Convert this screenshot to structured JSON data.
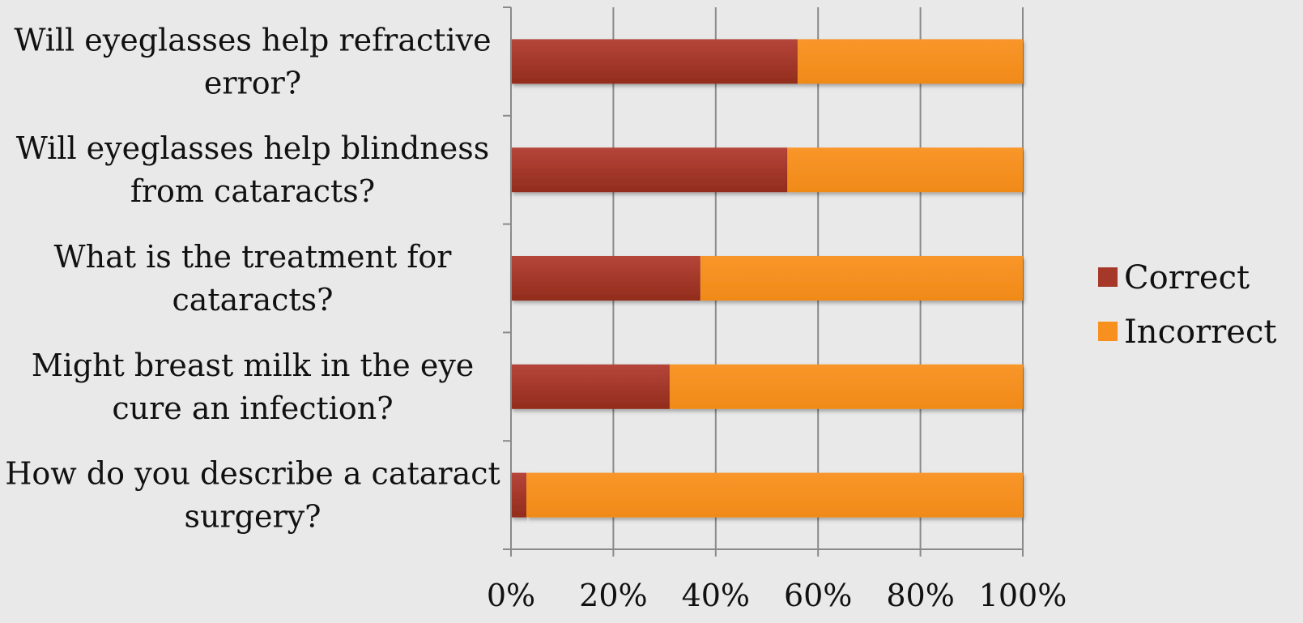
{
  "chart_data": {
    "type": "bar",
    "orientation": "horizontal",
    "stacked": "percent",
    "categories": [
      [
        "Will eyeglasses help refractive",
        "error?"
      ],
      [
        "Will eyeglasses help blindness",
        "from cataracts?"
      ],
      [
        "What is the treatment for",
        "cataracts?"
      ],
      [
        "Might breast milk in the eye",
        "cure an infection?"
      ],
      [
        "How do you describe a cataract",
        "surgery?"
      ]
    ],
    "series": [
      {
        "name": "Correct",
        "values": [
          56,
          54,
          37,
          31,
          3
        ]
      },
      {
        "name": "Incorrect",
        "values": [
          44,
          46,
          63,
          69,
          97
        ]
      }
    ],
    "colors": [
      "#a6382a",
      "#f7901e"
    ],
    "x_ticks": [
      "0%",
      "20%",
      "40%",
      "60%",
      "80%",
      "100%"
    ],
    "xlim": [
      0,
      100
    ],
    "grid": "vertical",
    "legend_position": "right",
    "title": "",
    "xlabel": "",
    "ylabel": ""
  }
}
